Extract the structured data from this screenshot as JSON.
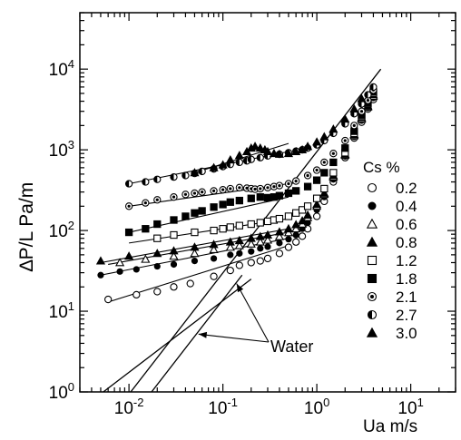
{
  "chart_data": {
    "type": "scatter",
    "xlabel": "Ua m/s",
    "ylabel": "∆P/L Pa/m",
    "x_scale": "log",
    "y_scale": "log",
    "xlim": [
      0.003,
      30
    ],
    "ylim": [
      1,
      50000
    ],
    "x_ticks": [
      {
        "value": 0.01,
        "base": "10",
        "exp": "-2"
      },
      {
        "value": 0.1,
        "base": "10",
        "exp": "-1"
      },
      {
        "value": 1,
        "base": "10",
        "exp": "0"
      },
      {
        "value": 10,
        "base": "10",
        "exp": "1"
      }
    ],
    "y_ticks": [
      {
        "value": 1,
        "base": "10",
        "exp": "0"
      },
      {
        "value": 10,
        "base": "10",
        "exp": "1"
      },
      {
        "value": 100,
        "base": "10",
        "exp": "2"
      },
      {
        "value": 1000,
        "base": "10",
        "exp": "3"
      },
      {
        "value": 10000,
        "base": "10",
        "exp": "4"
      }
    ],
    "grid": false,
    "legend": {
      "title": "Cs %",
      "position": "right"
    },
    "series": [
      {
        "name": "0.2",
        "marker": "circle-open",
        "fit": [
          [
            0.006,
            13
          ],
          [
            0.5,
            65
          ]
        ],
        "x": [
          0.006,
          0.012,
          0.02,
          0.03,
          0.045,
          0.08,
          0.12,
          0.15,
          0.2,
          0.25,
          0.3,
          0.4,
          0.5,
          0.6,
          0.7,
          0.8,
          1.0,
          1.2,
          1.5,
          2.0,
          2.5,
          3.0,
          3.5,
          4.0
        ],
        "y": [
          14,
          16,
          17.5,
          20,
          22,
          27,
          32,
          37,
          40,
          42,
          45,
          52,
          62,
          72,
          85,
          105,
          150,
          230,
          400,
          800,
          1400,
          2200,
          3200,
          4200
        ]
      },
      {
        "name": "0.4",
        "marker": "circle-filled",
        "fit": [
          [
            0.005,
            28
          ],
          [
            0.5,
            80
          ]
        ],
        "x": [
          0.005,
          0.008,
          0.012,
          0.02,
          0.03,
          0.05,
          0.08,
          0.12,
          0.15,
          0.2,
          0.25,
          0.3,
          0.4,
          0.5,
          0.6,
          0.7,
          0.8,
          1.0,
          1.2,
          1.5,
          2.0,
          2.5,
          3.0,
          3.5,
          4.0
        ],
        "y": [
          28,
          31,
          33,
          36,
          38,
          42,
          45,
          50,
          52,
          55,
          60,
          63,
          70,
          78,
          88,
          105,
          125,
          180,
          260,
          430,
          830,
          1450,
          2300,
          3300,
          4400
        ]
      },
      {
        "name": "0.6",
        "marker": "triangle-open",
        "fit": [
          [
            0.006,
            38
          ],
          [
            0.5,
            95
          ]
        ],
        "x": [
          0.008,
          0.015,
          0.03,
          0.05,
          0.08,
          0.12,
          0.15,
          0.2,
          0.25,
          0.3,
          0.4,
          0.5,
          0.6,
          0.7,
          0.8,
          1.0,
          1.2,
          1.5,
          2.0,
          2.5,
          3.0,
          3.5,
          4.0
        ],
        "y": [
          40,
          44,
          48,
          52,
          58,
          62,
          65,
          68,
          72,
          76,
          84,
          94,
          105,
          120,
          145,
          200,
          280,
          460,
          860,
          1500,
          2400,
          3400,
          4600
        ]
      },
      {
        "name": "0.8",
        "marker": "triangle-filled",
        "fit": [
          [
            0.005,
            40
          ],
          [
            0.5,
            105
          ]
        ],
        "x": [
          0.005,
          0.01,
          0.02,
          0.03,
          0.05,
          0.08,
          0.12,
          0.15,
          0.2,
          0.25,
          0.3,
          0.4,
          0.5,
          0.6,
          0.7,
          0.8,
          1.0,
          1.2,
          1.5,
          2.0,
          2.5,
          3.0,
          3.5,
          4.0
        ],
        "y": [
          42,
          48,
          52,
          56,
          62,
          67,
          72,
          75,
          80,
          84,
          88,
          96,
          105,
          118,
          132,
          155,
          210,
          290,
          480,
          880,
          1550,
          2500,
          3500,
          4800
        ]
      },
      {
        "name": "1.2",
        "marker": "square-open",
        "fit": [
          [
            0.01,
            70
          ],
          [
            0.5,
            140
          ]
        ],
        "x": [
          0.02,
          0.03,
          0.05,
          0.08,
          0.1,
          0.12,
          0.15,
          0.2,
          0.25,
          0.3,
          0.35,
          0.4,
          0.5,
          0.6,
          0.7,
          0.8,
          1.0,
          1.2,
          1.5,
          2.0,
          2.5,
          3.0,
          3.5,
          4.0
        ],
        "y": [
          80,
          88,
          95,
          100,
          105,
          110,
          115,
          120,
          125,
          130,
          135,
          140,
          150,
          165,
          180,
          200,
          250,
          330,
          520,
          920,
          1600,
          2600,
          3700,
          5000
        ]
      },
      {
        "name": "1.8",
        "marker": "square-filled",
        "fit": [
          [
            0.01,
            95
          ],
          [
            0.5,
            260
          ]
        ],
        "x": [
          0.01,
          0.015,
          0.02,
          0.03,
          0.04,
          0.05,
          0.06,
          0.08,
          0.1,
          0.12,
          0.15,
          0.2,
          0.25,
          0.3,
          0.35,
          0.4,
          0.5,
          0.6,
          0.8,
          1.0,
          1.2,
          1.5,
          2.0,
          2.5,
          3.0,
          3.5,
          4.0
        ],
        "y": [
          95,
          105,
          120,
          135,
          150,
          165,
          175,
          195,
          210,
          225,
          235,
          250,
          260,
          255,
          260,
          270,
          290,
          310,
          350,
          420,
          520,
          700,
          1050,
          1700,
          2700,
          3800,
          5200
        ]
      },
      {
        "name": "2.1",
        "marker": "circle-dot",
        "fit": [
          [
            0.01,
            200
          ],
          [
            0.5,
            380
          ]
        ],
        "x": [
          0.01,
          0.015,
          0.02,
          0.03,
          0.04,
          0.05,
          0.06,
          0.08,
          0.1,
          0.12,
          0.15,
          0.18,
          0.2,
          0.22,
          0.25,
          0.3,
          0.35,
          0.4,
          0.5,
          0.6,
          0.8,
          1.0,
          1.2,
          1.5,
          2.0,
          2.5,
          3.0,
          3.5,
          4.0
        ],
        "y": [
          200,
          220,
          240,
          260,
          280,
          290,
          300,
          310,
          320,
          330,
          340,
          335,
          330,
          325,
          330,
          340,
          350,
          360,
          380,
          410,
          480,
          560,
          700,
          900,
          1300,
          2000,
          3000,
          4100,
          5500
        ]
      },
      {
        "name": "2.7",
        "marker": "circle-half",
        "fit": [
          [
            0.01,
            380
          ],
          [
            0.5,
            950
          ]
        ],
        "x": [
          0.01,
          0.015,
          0.02,
          0.03,
          0.04,
          0.05,
          0.06,
          0.08,
          0.1,
          0.12,
          0.15,
          0.18,
          0.2,
          0.25,
          0.3,
          0.4,
          0.5,
          0.6,
          0.7,
          0.8,
          1.0,
          1.2,
          1.5,
          2.0,
          2.5,
          3.0,
          3.5,
          4.0
        ],
        "y": [
          380,
          400,
          430,
          460,
          480,
          510,
          540,
          580,
          620,
          660,
          700,
          730,
          760,
          800,
          840,
          880,
          920,
          960,
          1000,
          1050,
          1150,
          1300,
          1600,
          2100,
          2800,
          3700,
          4800,
          6000
        ]
      },
      {
        "name": "3.0",
        "marker": "triangle-filled",
        "fit": [
          [
            0.05,
            520
          ],
          [
            0.5,
            1200
          ]
        ],
        "x": [
          0.05,
          0.08,
          0.1,
          0.12,
          0.15,
          0.18,
          0.2,
          0.22,
          0.25,
          0.28,
          0.3,
          0.35,
          0.4,
          0.5,
          0.6,
          0.7,
          0.8,
          1.0,
          1.2,
          1.5,
          2.0,
          2.5,
          3.0
        ],
        "y": [
          520,
          600,
          650,
          750,
          850,
          950,
          1050,
          1100,
          1050,
          1000,
          950,
          900,
          880,
          900,
          950,
          1000,
          1100,
          1250,
          1450,
          1800,
          2400,
          3200,
          4300
        ]
      }
    ],
    "reference_lines": [
      {
        "name": "Water",
        "x": [
          0.009,
          4.8
        ],
        "y": [
          0.8,
          10000
        ]
      },
      {
        "name": "Water",
        "x": [
          0.015,
          0.16
        ],
        "y": [
          0.8,
          28
        ]
      },
      {
        "name": "Water",
        "x": [
          0.003,
          0.2
        ],
        "y": [
          0.6,
          25
        ]
      }
    ],
    "annotations": [
      {
        "text": "Water",
        "x": 0.55,
        "y": 3.8,
        "arrows_to": [
          [
            0.14,
            22
          ],
          [
            0.055,
            5.2
          ]
        ]
      }
    ]
  }
}
